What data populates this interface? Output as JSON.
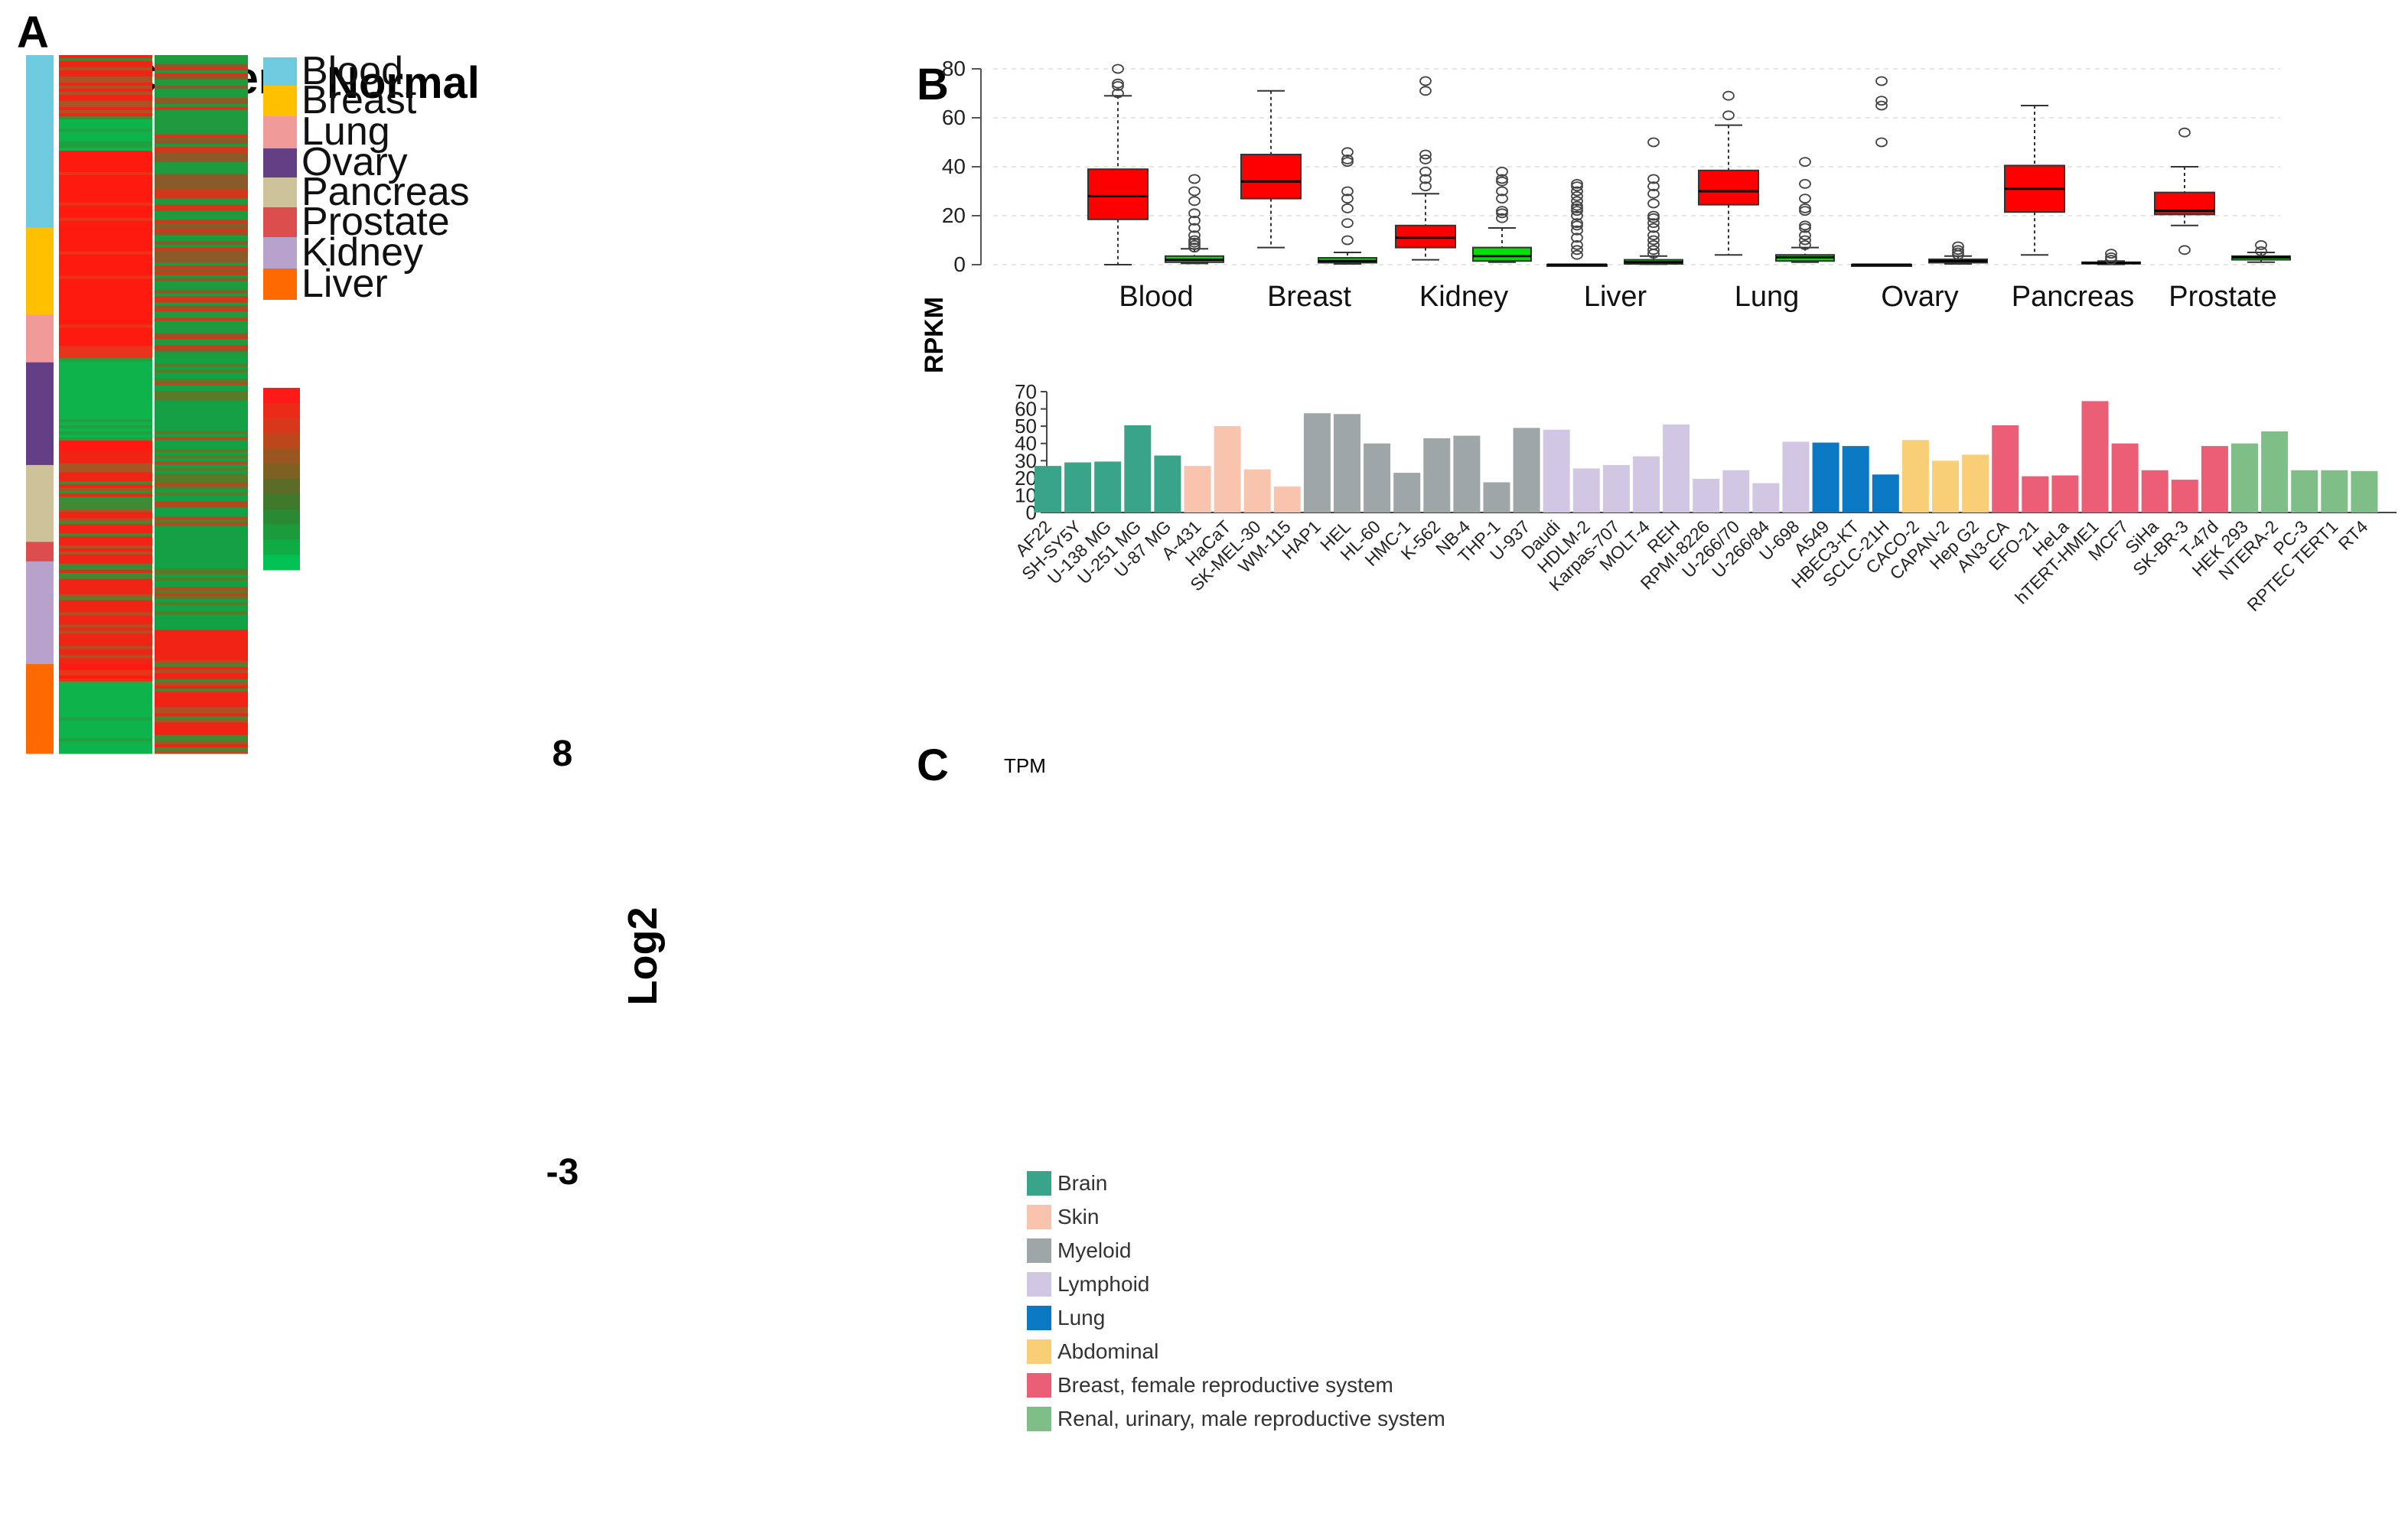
{
  "panels": {
    "a": "A",
    "b": "B",
    "c": "C"
  },
  "chart_data": [
    {
      "type": "heatmap",
      "panel": "A",
      "columns": [
        "Cancer",
        "Normal"
      ],
      "tissue_groups": [
        {
          "name": "Blood",
          "color": "#6ecbdf",
          "fraction": 0.247
        },
        {
          "name": "Breast",
          "color": "#ffc000",
          "fraction": 0.125
        },
        {
          "name": "Lung",
          "color": "#f09a9a",
          "fraction": 0.068
        },
        {
          "name": "Ovary",
          "color": "#633f86",
          "fraction": 0.147
        },
        {
          "name": "Pancreas",
          "color": "#cdc29a",
          "fraction": 0.11
        },
        {
          "name": "Prostate",
          "color": "#dc4e4e",
          "fraction": 0.028
        },
        {
          "name": "Kidney",
          "color": "#b7a2cc",
          "fraction": 0.147
        },
        {
          "name": "Liver",
          "color": "#ff6a00",
          "fraction": 0.128
        }
      ],
      "cancer_blocks": [
        {
          "state": "mixed-red",
          "fraction": 0.092
        },
        {
          "state": "green",
          "fraction": 0.045
        },
        {
          "state": "red",
          "fraction": 0.297
        },
        {
          "state": "green",
          "fraction": 0.118
        },
        {
          "state": "red",
          "fraction": 0.015
        },
        {
          "state": "mixed-red",
          "fraction": 0.305
        },
        {
          "state": "red",
          "fraction": 0.025
        },
        {
          "state": "green",
          "fraction": 0.103
        }
      ],
      "normal_blocks": [
        {
          "state": "mixed",
          "fraction": 0.433
        },
        {
          "state": "green-mixed",
          "fraction": 0.39
        },
        {
          "state": "mixed-red",
          "fraction": 0.177
        }
      ],
      "legend_title": "Log2",
      "color_scale": {
        "max": "8",
        "min": "-3",
        "colors": [
          "#ff1a1a",
          "#ec2a18",
          "#d8381a",
          "#bb481d",
          "#9b5520",
          "#7d6022",
          "#5c6b26",
          "#3f7a2c",
          "#298a33",
          "#1b9a3c",
          "#0fab45",
          "#00c254"
        ]
      }
    },
    {
      "type": "boxplot",
      "panel": "B",
      "ylabel": "RPKM",
      "ylim": [
        0,
        80
      ],
      "yticks": [
        0,
        20,
        40,
        60,
        80
      ],
      "categories": [
        "Blood",
        "Breast",
        "Kidney",
        "Liver",
        "Lung",
        "Ovary",
        "Pancreas",
        "Prostate"
      ],
      "series": [
        {
          "name": "Cancer",
          "color": "#ff0000",
          "boxes": [
            {
              "min": 0,
              "q1": 18.5,
              "median": 28,
              "q3": 39,
              "max": 69,
              "outliers": [
                70,
                73,
                74,
                80
              ]
            },
            {
              "min": 7,
              "q1": 27,
              "median": 34,
              "q3": 45,
              "max": 71,
              "outliers": []
            },
            {
              "min": 2,
              "q1": 7,
              "median": 11,
              "q3": 16,
              "max": 29,
              "outliers": [
                32,
                35,
                38,
                43,
                45,
                71,
                75
              ]
            },
            {
              "min": 0,
              "q1": 0,
              "median": 0,
              "q3": 0,
              "max": 0,
              "outliers": [
                4,
                6,
                8,
                11,
                14,
                16,
                17,
                20,
                22,
                23,
                24,
                26,
                28,
                30,
                32,
                33
              ]
            },
            {
              "min": 4,
              "q1": 24.5,
              "median": 30,
              "q3": 38.5,
              "max": 57,
              "outliers": [
                61,
                69
              ]
            },
            {
              "min": 0,
              "q1": 0,
              "median": 0,
              "q3": 0,
              "max": 0,
              "outliers": [
                50,
                65,
                67,
                75
              ]
            },
            {
              "min": 4,
              "q1": 21.5,
              "median": 31,
              "q3": 40.5,
              "max": 65,
              "outliers": []
            },
            {
              "min": 16,
              "q1": 20.5,
              "median": 22,
              "q3": 29.5,
              "max": 40,
              "outliers": [
                6,
                54
              ]
            }
          ]
        },
        {
          "name": "Normal",
          "color": "#00e000",
          "boxes": [
            {
              "min": 0.5,
              "q1": 1,
              "median": 2,
              "q3": 3.5,
              "max": 6.5,
              "outliers": [
                7,
                8,
                9,
                10,
                12,
                15,
                18,
                21,
                26,
                30,
                35
              ]
            },
            {
              "min": 0.3,
              "q1": 0.8,
              "median": 1.5,
              "q3": 2.8,
              "max": 5,
              "outliers": [
                10,
                17,
                23,
                27,
                30,
                42,
                43,
                46
              ]
            },
            {
              "min": 1,
              "q1": 1.5,
              "median": 3.5,
              "q3": 7,
              "max": 15,
              "outliers": [
                19,
                21,
                22,
                27,
                30,
                34,
                35,
                38
              ]
            },
            {
              "min": 0.2,
              "q1": 0.3,
              "median": 1,
              "q3": 2,
              "max": 3.5,
              "outliers": [
                4.5,
                6,
                8,
                10,
                12,
                15,
                17,
                19,
                20,
                25,
                29,
                32,
                35,
                50
              ]
            },
            {
              "min": 1,
              "q1": 1.5,
              "median": 3,
              "q3": 4,
              "max": 7,
              "outliers": [
                8,
                10,
                12,
                15,
                16,
                22,
                23,
                27,
                33,
                42
              ]
            },
            {
              "min": 0.3,
              "q1": 0.8,
              "median": 1.5,
              "q3": 2.2,
              "max": 3.5,
              "outliers": [
                4,
                5,
                6,
                7.5
              ]
            },
            {
              "min": 0.1,
              "q1": 0.4,
              "median": 0.7,
              "q3": 1,
              "max": 1.5,
              "outliers": [
                2,
                3,
                4.5
              ]
            },
            {
              "min": 1,
              "q1": 2,
              "median": 3,
              "q3": 3.5,
              "max": 5,
              "outliers": [
                5.5,
                8
              ]
            }
          ]
        }
      ]
    },
    {
      "type": "bar",
      "panel": "C",
      "ylabel": "TPM",
      "ylim": [
        0,
        70
      ],
      "yticks": [
        0,
        10,
        20,
        30,
        40,
        50,
        60,
        70
      ],
      "groups": [
        {
          "name": "Brain",
          "color": "#3aa48a"
        },
        {
          "name": "Skin",
          "color": "#f9c4ad"
        },
        {
          "name": "Myeloid",
          "color": "#9ea6a8"
        },
        {
          "name": "Lymphoid",
          "color": "#d2c7e3"
        },
        {
          "name": "Lung",
          "color": "#0b78c4"
        },
        {
          "name": "Abdominal",
          "color": "#f8cf77"
        },
        {
          "name": "Breast, female reproductive system",
          "color": "#ec5d76"
        },
        {
          "name": "Renal, urinary, male reproductive system",
          "color": "#7fbe86"
        }
      ],
      "bars": [
        {
          "label": "AF22",
          "value": 27,
          "group": 0
        },
        {
          "label": "SH-SY5Y",
          "value": 29,
          "group": 0
        },
        {
          "label": "U-138 MG",
          "value": 29.5,
          "group": 0
        },
        {
          "label": "U-251 MG",
          "value": 50.5,
          "group": 0
        },
        {
          "label": "U-87 MG",
          "value": 33,
          "group": 0
        },
        {
          "label": "A-431",
          "value": 27,
          "group": 1
        },
        {
          "label": "HaCaT",
          "value": 50,
          "group": 1
        },
        {
          "label": "SK-MEL-30",
          "value": 25,
          "group": 1
        },
        {
          "label": "WM-115",
          "value": 15,
          "group": 1
        },
        {
          "label": "HAP1",
          "value": 57.5,
          "group": 2
        },
        {
          "label": "HEL",
          "value": 57,
          "group": 2
        },
        {
          "label": "HL-60",
          "value": 40,
          "group": 2
        },
        {
          "label": "HMC-1",
          "value": 23,
          "group": 2
        },
        {
          "label": "K-562",
          "value": 43,
          "group": 2
        },
        {
          "label": "NB-4",
          "value": 44.5,
          "group": 2
        },
        {
          "label": "THP-1",
          "value": 17.5,
          "group": 2
        },
        {
          "label": "U-937",
          "value": 49,
          "group": 2
        },
        {
          "label": "Daudi",
          "value": 48,
          "group": 3
        },
        {
          "label": "HDLM-2",
          "value": 25.5,
          "group": 3
        },
        {
          "label": "Karpas-707",
          "value": 27.5,
          "group": 3
        },
        {
          "label": "MOLT-4",
          "value": 32.5,
          "group": 3
        },
        {
          "label": "REH",
          "value": 51,
          "group": 3
        },
        {
          "label": "RPMI-8226",
          "value": 19.5,
          "group": 3
        },
        {
          "label": "U-266/70",
          "value": 24.5,
          "group": 3
        },
        {
          "label": "U-266/84",
          "value": 17,
          "group": 3
        },
        {
          "label": "U-698",
          "value": 41,
          "group": 3
        },
        {
          "label": "A549",
          "value": 40.5,
          "group": 4
        },
        {
          "label": "HBEC3-KT",
          "value": 38.5,
          "group": 4
        },
        {
          "label": "SCLC-21H",
          "value": 22,
          "group": 4
        },
        {
          "label": "CACO-2",
          "value": 42,
          "group": 5
        },
        {
          "label": "CAPAN-2",
          "value": 30,
          "group": 5
        },
        {
          "label": "Hep G2",
          "value": 33.5,
          "group": 5
        },
        {
          "label": "AN3-CA",
          "value": 50.5,
          "group": 6
        },
        {
          "label": "EFO-21",
          "value": 21,
          "group": 6
        },
        {
          "label": "HeLa",
          "value": 21.5,
          "group": 6
        },
        {
          "label": "hTERT-HME1",
          "value": 64.5,
          "group": 6
        },
        {
          "label": "MCF7",
          "value": 40,
          "group": 6
        },
        {
          "label": "SiHa",
          "value": 24.5,
          "group": 6
        },
        {
          "label": "SK-BR-3",
          "value": 19,
          "group": 6
        },
        {
          "label": "T-47d",
          "value": 38.5,
          "group": 6
        },
        {
          "label": "HEK 293",
          "value": 40,
          "group": 7
        },
        {
          "label": "NTERA-2",
          "value": 47,
          "group": 7
        },
        {
          "label": "PC-3",
          "value": 24.5,
          "group": 7
        },
        {
          "label": "RPTEC TERT1",
          "value": 24.5,
          "group": 7
        },
        {
          "label": "RT4",
          "value": 24,
          "group": 7
        }
      ]
    }
  ]
}
